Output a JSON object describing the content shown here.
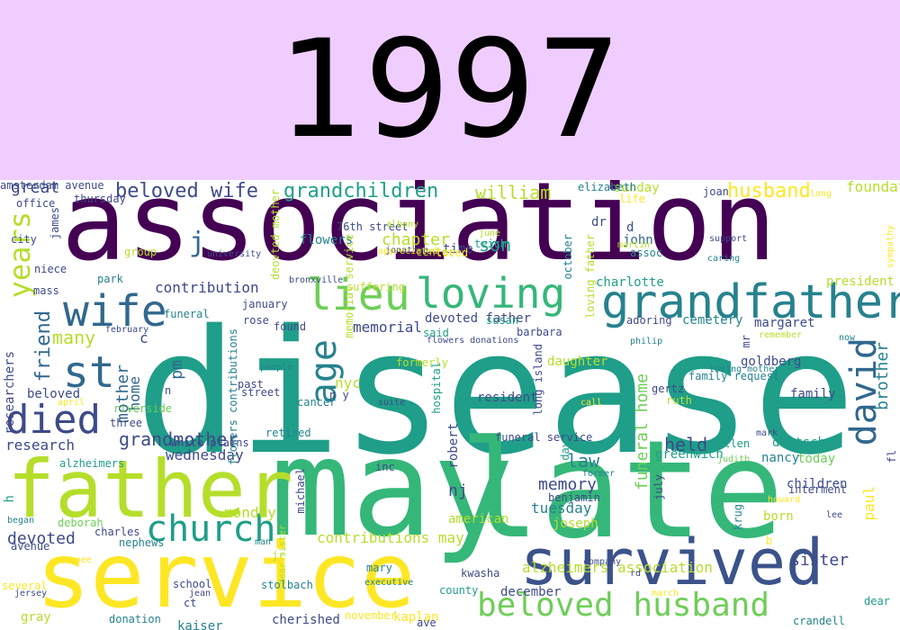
{
  "banner": {
    "title": "1997",
    "color": "#f0cdff"
  },
  "cloud": {
    "words": [
      {
        "text": "disease",
        "color": "#1f9e89"
      },
      {
        "text": "association",
        "color": "#440154"
      },
      {
        "text": "may",
        "color": "#35b779"
      },
      {
        "text": "late",
        "color": "#35b779"
      },
      {
        "text": "service",
        "color": "#fde725"
      },
      {
        "text": "father",
        "color": "#b5de2b"
      },
      {
        "text": "survived",
        "color": "#3b528b"
      },
      {
        "text": "grandfather",
        "color": "#26828e"
      },
      {
        "text": "loving",
        "color": "#35b779"
      },
      {
        "text": "wife",
        "color": "#31688e"
      },
      {
        "text": "lieu",
        "color": "#6ece58"
      },
      {
        "text": "st",
        "color": "#31688e"
      },
      {
        "text": "died",
        "color": "#3e4a89"
      },
      {
        "text": "age",
        "color": "#26828e"
      },
      {
        "text": "david",
        "color": "#31688e"
      },
      {
        "text": "church",
        "color": "#1f9e89"
      },
      {
        "text": "beloved husband",
        "color": "#6ece58"
      },
      {
        "text": "years",
        "color": "#b5de2b"
      },
      {
        "text": "grandchildren",
        "color": "#1f9e89"
      },
      {
        "text": "beloved wife",
        "color": "#3e4a89"
      },
      {
        "text": "husband",
        "color": "#fde725"
      },
      {
        "text": "william",
        "color": "#b5de2b"
      },
      {
        "text": "great",
        "color": "#3e4a89"
      },
      {
        "text": "grandmother",
        "color": "#3e4a89"
      },
      {
        "text": "son",
        "color": "#1f9e89"
      },
      {
        "text": "chapter",
        "color": "#b5de2b"
      },
      {
        "text": "contribution",
        "color": "#3e4a89"
      },
      {
        "text": "friend",
        "color": "#31688e"
      },
      {
        "text": "many",
        "color": "#b5de2b"
      },
      {
        "text": "mother",
        "color": "#31688e"
      },
      {
        "text": "home",
        "color": "#31688e"
      },
      {
        "text": "pm",
        "color": "#31688e"
      },
      {
        "text": "j",
        "color": "#31688e"
      },
      {
        "text": "c",
        "color": "#3e4a89"
      },
      {
        "text": "held",
        "color": "#3e4a89"
      },
      {
        "text": "law",
        "color": "#26828e"
      },
      {
        "text": "nj",
        "color": "#3e4a89"
      },
      {
        "text": "memory",
        "color": "#3e4a89"
      },
      {
        "text": "tuesday",
        "color": "#26828e"
      },
      {
        "text": "devoted",
        "color": "#3e4a89"
      },
      {
        "text": "funeral home",
        "color": "#6ece58"
      },
      {
        "text": "research",
        "color": "#3e4a89"
      },
      {
        "text": "wednesday",
        "color": "#3e4a89"
      },
      {
        "text": "paul",
        "color": "#fde725"
      },
      {
        "text": "brother",
        "color": "#26828e"
      },
      {
        "text": "sister",
        "color": "#3e4a89"
      },
      {
        "text": "contributions may",
        "color": "#b5de2b"
      },
      {
        "text": "alzheimers association",
        "color": "#b5de2b"
      },
      {
        "text": "memorial",
        "color": "#3e4a89"
      },
      {
        "text": "nyc",
        "color": "#b5de2b"
      },
      {
        "text": "beloved",
        "color": "#3e4a89"
      },
      {
        "text": "robert",
        "color": "#3e4a89"
      },
      {
        "text": "family",
        "color": "#3e4a89"
      },
      {
        "text": "cemetery",
        "color": "#26828e"
      },
      {
        "text": "margaret",
        "color": "#3e4a89"
      },
      {
        "text": "president",
        "color": "#b5de2b"
      },
      {
        "text": "foundation",
        "color": "#b5de2b"
      },
      {
        "text": "john",
        "color": "#31688e"
      },
      {
        "text": "sunday",
        "color": "#b5de2b"
      },
      {
        "text": "charlotte",
        "color": "#1f9e89"
      },
      {
        "text": "devoted father",
        "color": "#3e4a89"
      },
      {
        "text": "daughter",
        "color": "#b5de2b"
      },
      {
        "text": "resident",
        "color": "#3e4a89"
      },
      {
        "text": "deutsch",
        "color": "#1f9e89"
      },
      {
        "text": "greenwich",
        "color": "#1f9e89"
      },
      {
        "text": "children",
        "color": "#3e4a89"
      },
      {
        "text": "joseph",
        "color": "#b5de2b"
      },
      {
        "text": "american",
        "color": "#b5de2b"
      },
      {
        "text": "monday",
        "color": "#b5de2b"
      },
      {
        "text": "h",
        "color": "#1f9e89"
      },
      {
        "text": "niece",
        "color": "#3e4a89"
      },
      {
        "text": "mass",
        "color": "#3e4a89"
      },
      {
        "text": "park",
        "color": "#26828e"
      },
      {
        "text": "james",
        "color": "#3e4a89"
      },
      {
        "text": "city",
        "color": "#3e4a89"
      },
      {
        "text": "thursday",
        "color": "#3e4a89"
      },
      {
        "text": "office",
        "color": "#3e4a89"
      },
      {
        "text": "group",
        "color": "#b5de2b"
      },
      {
        "text": "flowers",
        "color": "#26828e"
      },
      {
        "text": "time",
        "color": "#3e4a89"
      },
      {
        "text": "dr",
        "color": "#3e4a89"
      },
      {
        "text": "d",
        "color": "#3e4a89"
      },
      {
        "text": "life",
        "color": "#fde725"
      },
      {
        "text": "elizabeth",
        "color": "#26828e"
      },
      {
        "text": "joan",
        "color": "#3e4a89"
      },
      {
        "text": "long",
        "color": "#fde725"
      },
      {
        "text": "sympathy",
        "color": "#fde725"
      },
      {
        "text": "76th street",
        "color": "#3e4a89"
      },
      {
        "text": "albany",
        "color": "#b5de2b"
      },
      {
        "text": "deovted mother",
        "color": "#b5de2b"
      },
      {
        "text": "memorial service",
        "color": "#b5de2b"
      },
      {
        "text": "center",
        "color": "#b5de2b"
      },
      {
        "text": "teich",
        "color": "#1f9e89"
      },
      {
        "text": "june",
        "color": "#b5de2b"
      },
      {
        "text": "jonathan",
        "color": "#3e4a89"
      },
      {
        "text": "appreciated",
        "color": "#fde725"
      },
      {
        "text": "october",
        "color": "#26828e"
      },
      {
        "text": "loving father",
        "color": "#b5de2b"
      },
      {
        "text": "martin",
        "color": "#b5de2b"
      },
      {
        "text": "assoc",
        "color": "#26828e"
      },
      {
        "text": "support",
        "color": "#3e4a89"
      },
      {
        "text": "caring",
        "color": "#26828e"
      },
      {
        "text": "loved",
        "color": "#fde725"
      },
      {
        "text": "bronxville",
        "color": "#3e4a89"
      },
      {
        "text": "suffering",
        "color": "#b5de2b"
      },
      {
        "text": "university",
        "color": "#3e4a89"
      },
      {
        "text": "funeral",
        "color": "#26828e"
      },
      {
        "text": "january",
        "color": "#3e4a89"
      },
      {
        "text": "rose",
        "color": "#3e4a89"
      },
      {
        "text": "found",
        "color": "#3e4a89"
      },
      {
        "text": "susan",
        "color": "#1f9e89"
      },
      {
        "text": "said",
        "color": "#1f9e89"
      },
      {
        "text": "barbara",
        "color": "#3e4a89"
      },
      {
        "text": "adoring",
        "color": "#3e4a89"
      },
      {
        "text": "february",
        "color": "#3e4a89"
      },
      {
        "text": "flowers contributions",
        "color": "#26828e"
      },
      {
        "text": "flowers donations",
        "color": "#3e4a89"
      },
      {
        "text": "philip",
        "color": "#26828e"
      },
      {
        "text": "remember",
        "color": "#b5de2b"
      },
      {
        "text": "now",
        "color": "#26828e"
      },
      {
        "text": "researchers",
        "color": "#3e4a89"
      },
      {
        "text": "formerly",
        "color": "#b5de2b"
      },
      {
        "text": "hospital",
        "color": "#1f9e89"
      },
      {
        "text": "long island",
        "color": "#3e4a89"
      },
      {
        "text": "family request",
        "color": "#26828e"
      },
      {
        "text": "goldberg",
        "color": "#3e4a89"
      },
      {
        "text": "mr",
        "color": "#3e4a89"
      },
      {
        "text": "loving mother",
        "color": "#26828e"
      },
      {
        "text": "people",
        "color": "#26828e"
      },
      {
        "text": "past",
        "color": "#3e4a89"
      },
      {
        "text": "n",
        "color": "#3e4a89"
      },
      {
        "text": "street",
        "color": "#3e4a89"
      },
      {
        "text": "cancer",
        "color": "#26828e"
      },
      {
        "text": "n y",
        "color": "#3e4a89"
      },
      {
        "text": "gertz",
        "color": "#3e4a89"
      },
      {
        "text": "ruth",
        "color": "#b5de2b"
      },
      {
        "text": "april",
        "color": "#fde725"
      },
      {
        "text": "riverside",
        "color": "#6ece58"
      },
      {
        "text": "suite",
        "color": "#3e4a89"
      },
      {
        "text": "call",
        "color": "#fde725"
      },
      {
        "text": "three",
        "color": "#3e4a89"
      },
      {
        "text": "retired",
        "color": "#26828e"
      },
      {
        "text": "funeral service",
        "color": "#3e4a89"
      },
      {
        "text": "ellen",
        "color": "#1f9e89"
      },
      {
        "text": "mark",
        "color": "#3e4a89"
      },
      {
        "text": "white plains",
        "color": "#3e4a89"
      },
      {
        "text": "alzheimers",
        "color": "#1f9e89"
      },
      {
        "text": "judith",
        "color": "#6ece58"
      },
      {
        "text": "nancy",
        "color": "#26828e"
      },
      {
        "text": "today",
        "color": "#6ece58"
      },
      {
        "text": "inc",
        "color": "#3e4a89"
      },
      {
        "text": "michael",
        "color": "#3e4a89"
      },
      {
        "text": "day",
        "color": "#1f9e89"
      },
      {
        "text": "former",
        "color": "#26828e"
      },
      {
        "text": "july",
        "color": "#3e4a89"
      },
      {
        "text": "fl",
        "color": "#3e4a89"
      },
      {
        "text": "interment",
        "color": "#3e4a89"
      },
      {
        "text": "howard",
        "color": "#fde725"
      },
      {
        "text": "benjamin",
        "color": "#3e4a89"
      },
      {
        "text": "krug",
        "color": "#26828e"
      },
      {
        "text": "born",
        "color": "#b5de2b"
      },
      {
        "text": "lee",
        "color": "#3e4a89"
      },
      {
        "text": "began",
        "color": "#26828e"
      },
      {
        "text": "deborah",
        "color": "#6ece58"
      },
      {
        "text": "charles",
        "color": "#3e4a89"
      },
      {
        "text": "nephews",
        "color": "#26828e"
      },
      {
        "text": "man",
        "color": "#26828e"
      },
      {
        "text": "dear sister",
        "color": "#b5de2b"
      },
      {
        "text": "b",
        "color": "#fde725"
      },
      {
        "text": "avenue",
        "color": "#3e4a89"
      },
      {
        "text": "nee",
        "color": "#fde725"
      },
      {
        "text": "jr",
        "color": "#b5de2b"
      },
      {
        "text": "mary",
        "color": "#26828e"
      },
      {
        "text": "kwasha",
        "color": "#3e4a89"
      },
      {
        "text": "company",
        "color": "#3e4a89"
      },
      {
        "text": "rd",
        "color": "#3e4a89"
      },
      {
        "text": "several",
        "color": "#fde725"
      },
      {
        "text": "school",
        "color": "#3e4a89"
      },
      {
        "text": "stolbach",
        "color": "#26828e"
      },
      {
        "text": "jersey",
        "color": "#3e4a89"
      },
      {
        "text": "executive",
        "color": "#26828e"
      },
      {
        "text": "county",
        "color": "#1f9e89"
      },
      {
        "text": "december",
        "color": "#3e4a89"
      },
      {
        "text": "ct",
        "color": "#3e4a89"
      },
      {
        "text": "march",
        "color": "#fde725"
      },
      {
        "text": "jean",
        "color": "#3e4a89"
      },
      {
        "text": "dear",
        "color": "#1f9e89"
      },
      {
        "text": "gray",
        "color": "#b5de2b"
      },
      {
        "text": "donation",
        "color": "#26828e"
      },
      {
        "text": "kaiser",
        "color": "#26828e"
      },
      {
        "text": "cherished",
        "color": "#3e4a89"
      },
      {
        "text": "november",
        "color": "#fde725"
      },
      {
        "text": "kaplan",
        "color": "#fde725"
      },
      {
        "text": "ave",
        "color": "#3e4a89"
      },
      {
        "text": "crandell",
        "color": "#26828e"
      },
      {
        "text": "amsterdam avenue",
        "color": "#3e4a89"
      }
    ]
  }
}
